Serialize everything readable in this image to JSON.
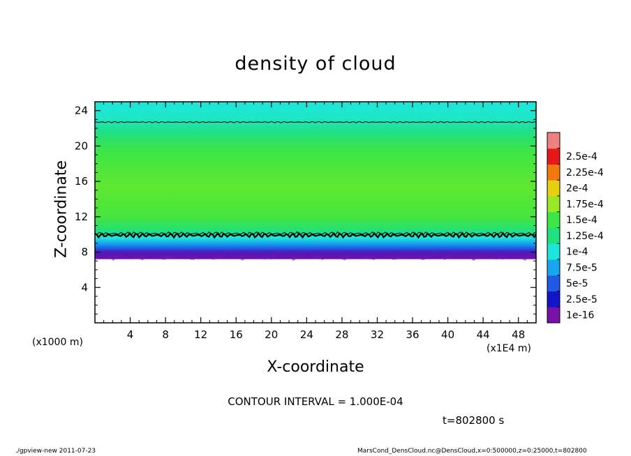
{
  "chart_data": {
    "type": "heatmap",
    "title": "density of cloud",
    "xlabel": "X-coordinate",
    "ylabel": "Z-coordinate",
    "x_unit_left": "(x1000 m)",
    "x_unit_right": "(x1E4 m)",
    "xlim": [
      0,
      50
    ],
    "ylim": [
      0,
      25
    ],
    "x_ticks": [
      4,
      8,
      12,
      16,
      20,
      24,
      28,
      32,
      36,
      40,
      44,
      48
    ],
    "y_ticks": [
      4,
      8,
      12,
      16,
      20,
      24
    ],
    "colorbar": {
      "labels": [
        "1e-16",
        "2.5e-5",
        "5e-5",
        "7.5e-5",
        "1e-4",
        "1.25e-4",
        "1.5e-4",
        "1.75e-4",
        "2e-4",
        "2.25e-4",
        "2.5e-4"
      ],
      "colors": [
        "#7a10a8",
        "#1414c8",
        "#1e5ae6",
        "#18a6ee",
        "#1ee6dc",
        "#20e080",
        "#3ce646",
        "#9ae628",
        "#e6d010",
        "#f07a10",
        "#e81818",
        "#f08080"
      ]
    },
    "field": {
      "cloud_base_z": 7.2,
      "contour_z_low": 9.9,
      "contour_z_high": 22.7,
      "cloud_top_z": 25
    },
    "contour_interval": "CONTOUR INTERVAL = 1.000E-04",
    "time_label": "t=802800 s"
  },
  "footer": {
    "left": "./gpview-new   2011-07-23",
    "right": "MarsCond_DensCloud.nc@DensCloud,x=0:500000,z=0:25000,t=802800"
  }
}
